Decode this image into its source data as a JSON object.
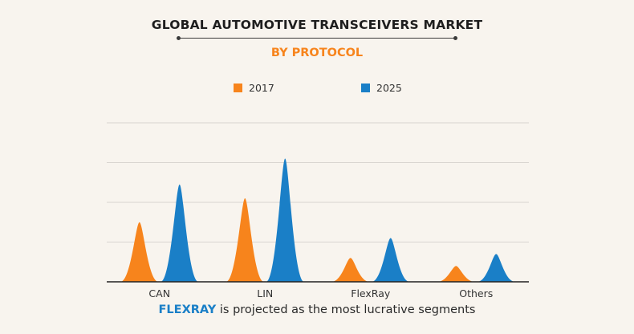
{
  "title": "GLOBAL AUTOMOTIVE TRANSCEIVERS MARKET",
  "subtitle": "BY PROTOCOL",
  "footer": {
    "highlight": "FLEXRAY",
    "text": " is projected as the most lucrative segments"
  },
  "colors": {
    "accent_orange": "#f7841c",
    "series_2017": "#f7841c",
    "series_2025": "#1a7fc7",
    "highlight": "#1a7fc7",
    "gridline": "#d9d5d0",
    "axis": "#222222"
  },
  "chart_data": {
    "type": "area",
    "categories": [
      "CAN",
      "LIN",
      "FlexRay",
      "Others"
    ],
    "series": [
      {
        "name": "2017",
        "values": [
          1.5,
          2.1,
          0.6,
          0.4
        ]
      },
      {
        "name": "2025",
        "values": [
          2.45,
          3.1,
          1.1,
          0.7
        ]
      }
    ],
    "ylim": [
      0,
      4
    ],
    "grid": true,
    "legend_position": "top"
  }
}
